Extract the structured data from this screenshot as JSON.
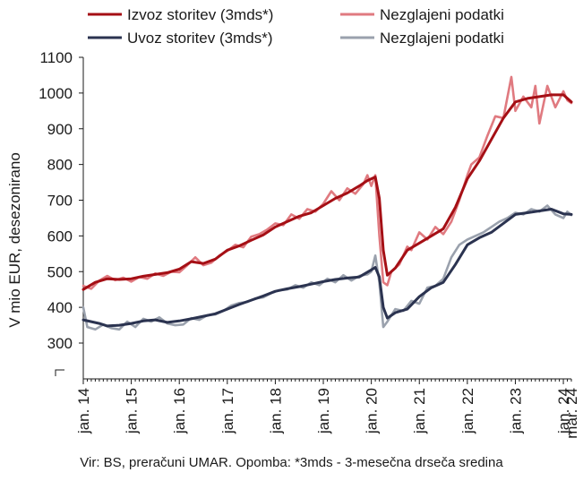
{
  "colors": {
    "export_smoothed": "#a50f15",
    "export_raw": "#e07a80",
    "import_smoothed": "#2b3350",
    "import_raw": "#9aa1ad",
    "axis": "#1a1a1a"
  },
  "source_note": "Vir: BS, preračuni UMAR. Opomba: *3mds - 3-mesečna drseča sredina",
  "chart_data": {
    "type": "line",
    "ylabel": "V mio EUR, desezonirano",
    "xlabel": "",
    "ylim": [
      250,
      1100
    ],
    "y_ticks": [
      300,
      400,
      500,
      600,
      700,
      800,
      900,
      1000,
      1100
    ],
    "y_tick_labels": [
      "300",
      "400",
      "500",
      "600",
      "700",
      "800",
      "900",
      "1000",
      "1100"
    ],
    "axis_break": true,
    "x_tick_labels": [
      "jan. 14",
      "jan. 15",
      "jan. 16",
      "jan. 17",
      "jan. 18",
      "jan. 19",
      "jan. 20",
      "jan. 21",
      "jan. 22",
      "jan. 23",
      "jan. 24",
      "mar. 24"
    ],
    "x_tick_dates": [
      "2014-01",
      "2015-01",
      "2016-01",
      "2017-01",
      "2018-01",
      "2019-01",
      "2020-01",
      "2021-01",
      "2022-01",
      "2023-01",
      "2024-01",
      "2024-03"
    ],
    "grid": false,
    "legend_position": "top",
    "series": [
      {
        "name": "Izvoz storitev (3mds*)",
        "style": "smoothed",
        "color": "#a50f15",
        "points": [
          [
            "2014-01",
            450
          ],
          [
            "2014-04",
            470
          ],
          [
            "2014-07",
            480
          ],
          [
            "2014-10",
            478
          ],
          [
            "2015-01",
            480
          ],
          [
            "2015-04",
            487
          ],
          [
            "2015-07",
            492
          ],
          [
            "2015-10",
            497
          ],
          [
            "2016-01",
            507
          ],
          [
            "2016-04",
            528
          ],
          [
            "2016-07",
            523
          ],
          [
            "2016-10",
            535
          ],
          [
            "2017-01",
            560
          ],
          [
            "2017-04",
            572
          ],
          [
            "2017-07",
            588
          ],
          [
            "2017-10",
            603
          ],
          [
            "2018-01",
            625
          ],
          [
            "2018-04",
            640
          ],
          [
            "2018-07",
            655
          ],
          [
            "2018-10",
            665
          ],
          [
            "2019-01",
            685
          ],
          [
            "2019-04",
            705
          ],
          [
            "2019-07",
            720
          ],
          [
            "2019-10",
            740
          ],
          [
            "2019-12",
            755
          ],
          [
            "2020-02",
            765
          ],
          [
            "2020-03",
            705
          ],
          [
            "2020-04",
            560
          ],
          [
            "2020-05",
            490
          ],
          [
            "2020-07",
            510
          ],
          [
            "2020-10",
            560
          ],
          [
            "2021-01",
            580
          ],
          [
            "2021-04",
            600
          ],
          [
            "2021-07",
            620
          ],
          [
            "2021-10",
            680
          ],
          [
            "2022-01",
            760
          ],
          [
            "2022-04",
            810
          ],
          [
            "2022-07",
            870
          ],
          [
            "2022-10",
            930
          ],
          [
            "2023-01",
            975
          ],
          [
            "2023-04",
            985
          ],
          [
            "2023-07",
            990
          ],
          [
            "2023-10",
            995
          ],
          [
            "2024-01",
            995
          ],
          [
            "2024-03",
            975
          ]
        ]
      },
      {
        "name": "Nezglajeni podatki",
        "style": "raw",
        "color": "#e07a80",
        "points": [
          [
            "2014-01",
            460
          ],
          [
            "2014-03",
            452
          ],
          [
            "2014-05",
            475
          ],
          [
            "2014-07",
            488
          ],
          [
            "2014-09",
            476
          ],
          [
            "2014-11",
            483
          ],
          [
            "2015-01",
            472
          ],
          [
            "2015-03",
            485
          ],
          [
            "2015-05",
            480
          ],
          [
            "2015-07",
            495
          ],
          [
            "2015-09",
            488
          ],
          [
            "2015-11",
            500
          ],
          [
            "2016-01",
            498
          ],
          [
            "2016-03",
            518
          ],
          [
            "2016-05",
            540
          ],
          [
            "2016-07",
            518
          ],
          [
            "2016-09",
            525
          ],
          [
            "2016-11",
            545
          ],
          [
            "2017-01",
            558
          ],
          [
            "2017-03",
            575
          ],
          [
            "2017-05",
            568
          ],
          [
            "2017-07",
            598
          ],
          [
            "2017-09",
            605
          ],
          [
            "2017-11",
            618
          ],
          [
            "2018-01",
            635
          ],
          [
            "2018-03",
            630
          ],
          [
            "2018-05",
            660
          ],
          [
            "2018-07",
            648
          ],
          [
            "2018-09",
            675
          ],
          [
            "2018-11",
            668
          ],
          [
            "2019-01",
            690
          ],
          [
            "2019-03",
            725
          ],
          [
            "2019-05",
            700
          ],
          [
            "2019-07",
            733
          ],
          [
            "2019-09",
            718
          ],
          [
            "2019-11",
            745
          ],
          [
            "2019-12",
            770
          ],
          [
            "2020-01",
            740
          ],
          [
            "2020-02",
            770
          ],
          [
            "2020-03",
            600
          ],
          [
            "2020-04",
            470
          ],
          [
            "2020-05",
            462
          ],
          [
            "2020-06",
            500
          ],
          [
            "2020-08",
            520
          ],
          [
            "2020-10",
            570
          ],
          [
            "2020-11",
            560
          ],
          [
            "2021-01",
            610
          ],
          [
            "2021-03",
            590
          ],
          [
            "2021-05",
            625
          ],
          [
            "2021-07",
            605
          ],
          [
            "2021-09",
            640
          ],
          [
            "2021-11",
            700
          ],
          [
            "2022-01",
            770
          ],
          [
            "2022-02",
            800
          ],
          [
            "2022-04",
            820
          ],
          [
            "2022-06",
            880
          ],
          [
            "2022-08",
            935
          ],
          [
            "2022-10",
            930
          ],
          [
            "2022-12",
            1045
          ],
          [
            "2023-01",
            950
          ],
          [
            "2023-03",
            990
          ],
          [
            "2023-05",
            960
          ],
          [
            "2023-06",
            1020
          ],
          [
            "2023-07",
            915
          ],
          [
            "2023-09",
            1020
          ],
          [
            "2023-11",
            960
          ],
          [
            "2024-01",
            1005
          ],
          [
            "2024-02",
            980
          ],
          [
            "2024-03",
            972
          ]
        ]
      },
      {
        "name": "Uvoz storitev (3mds*)",
        "style": "smoothed",
        "color": "#2b3350",
        "points": [
          [
            "2014-01",
            365
          ],
          [
            "2014-03",
            360
          ],
          [
            "2014-05",
            355
          ],
          [
            "2014-07",
            348
          ],
          [
            "2014-10",
            350
          ],
          [
            "2015-01",
            355
          ],
          [
            "2015-04",
            362
          ],
          [
            "2015-07",
            365
          ],
          [
            "2015-10",
            358
          ],
          [
            "2016-01",
            362
          ],
          [
            "2016-04",
            368
          ],
          [
            "2016-07",
            375
          ],
          [
            "2016-10",
            382
          ],
          [
            "2017-01",
            395
          ],
          [
            "2017-04",
            408
          ],
          [
            "2017-07",
            420
          ],
          [
            "2017-10",
            432
          ],
          [
            "2018-01",
            445
          ],
          [
            "2018-04",
            452
          ],
          [
            "2018-07",
            458
          ],
          [
            "2018-10",
            465
          ],
          [
            "2019-01",
            472
          ],
          [
            "2019-04",
            478
          ],
          [
            "2019-07",
            482
          ],
          [
            "2019-10",
            485
          ],
          [
            "2020-01",
            505
          ],
          [
            "2020-02",
            512
          ],
          [
            "2020-03",
            485
          ],
          [
            "2020-04",
            400
          ],
          [
            "2020-05",
            370
          ],
          [
            "2020-07",
            385
          ],
          [
            "2020-10",
            395
          ],
          [
            "2021-01",
            430
          ],
          [
            "2021-04",
            455
          ],
          [
            "2021-07",
            470
          ],
          [
            "2021-10",
            520
          ],
          [
            "2022-01",
            575
          ],
          [
            "2022-04",
            595
          ],
          [
            "2022-07",
            610
          ],
          [
            "2022-10",
            635
          ],
          [
            "2023-01",
            660
          ],
          [
            "2023-04",
            665
          ],
          [
            "2023-07",
            670
          ],
          [
            "2023-10",
            675
          ],
          [
            "2024-01",
            662
          ],
          [
            "2024-03",
            660
          ]
        ]
      },
      {
        "name": "Nezglajeni podatki",
        "style": "raw",
        "color": "#9aa1ad",
        "points": [
          [
            "2014-01",
            400
          ],
          [
            "2014-02",
            345
          ],
          [
            "2014-04",
            338
          ],
          [
            "2014-06",
            352
          ],
          [
            "2014-08",
            342
          ],
          [
            "2014-10",
            338
          ],
          [
            "2014-12",
            360
          ],
          [
            "2015-02",
            345
          ],
          [
            "2015-04",
            368
          ],
          [
            "2015-06",
            360
          ],
          [
            "2015-08",
            372
          ],
          [
            "2015-10",
            355
          ],
          [
            "2015-12",
            350
          ],
          [
            "2016-02",
            352
          ],
          [
            "2016-04",
            370
          ],
          [
            "2016-06",
            365
          ],
          [
            "2016-08",
            378
          ],
          [
            "2016-10",
            380
          ],
          [
            "2016-12",
            390
          ],
          [
            "2017-02",
            405
          ],
          [
            "2017-04",
            412
          ],
          [
            "2017-06",
            415
          ],
          [
            "2017-08",
            425
          ],
          [
            "2017-10",
            428
          ],
          [
            "2017-12",
            440
          ],
          [
            "2018-02",
            448
          ],
          [
            "2018-04",
            450
          ],
          [
            "2018-06",
            462
          ],
          [
            "2018-08",
            455
          ],
          [
            "2018-10",
            470
          ],
          [
            "2018-12",
            462
          ],
          [
            "2019-02",
            480
          ],
          [
            "2019-04",
            470
          ],
          [
            "2019-06",
            490
          ],
          [
            "2019-08",
            475
          ],
          [
            "2019-10",
            488
          ],
          [
            "2019-12",
            492
          ],
          [
            "2020-01",
            500
          ],
          [
            "2020-02",
            545
          ],
          [
            "2020-03",
            470
          ],
          [
            "2020-04",
            345
          ],
          [
            "2020-05",
            360
          ],
          [
            "2020-07",
            395
          ],
          [
            "2020-09",
            390
          ],
          [
            "2020-11",
            418
          ],
          [
            "2021-01",
            410
          ],
          [
            "2021-03",
            455
          ],
          [
            "2021-05",
            460
          ],
          [
            "2021-07",
            480
          ],
          [
            "2021-09",
            540
          ],
          [
            "2021-11",
            575
          ],
          [
            "2022-01",
            590
          ],
          [
            "2022-03",
            600
          ],
          [
            "2022-05",
            610
          ],
          [
            "2022-07",
            625
          ],
          [
            "2022-09",
            640
          ],
          [
            "2022-11",
            650
          ],
          [
            "2023-01",
            665
          ],
          [
            "2023-03",
            660
          ],
          [
            "2023-05",
            675
          ],
          [
            "2023-07",
            668
          ],
          [
            "2023-09",
            685
          ],
          [
            "2023-11",
            660
          ],
          [
            "2024-01",
            650
          ],
          [
            "2024-02",
            668
          ],
          [
            "2024-03",
            658
          ]
        ]
      }
    ]
  }
}
